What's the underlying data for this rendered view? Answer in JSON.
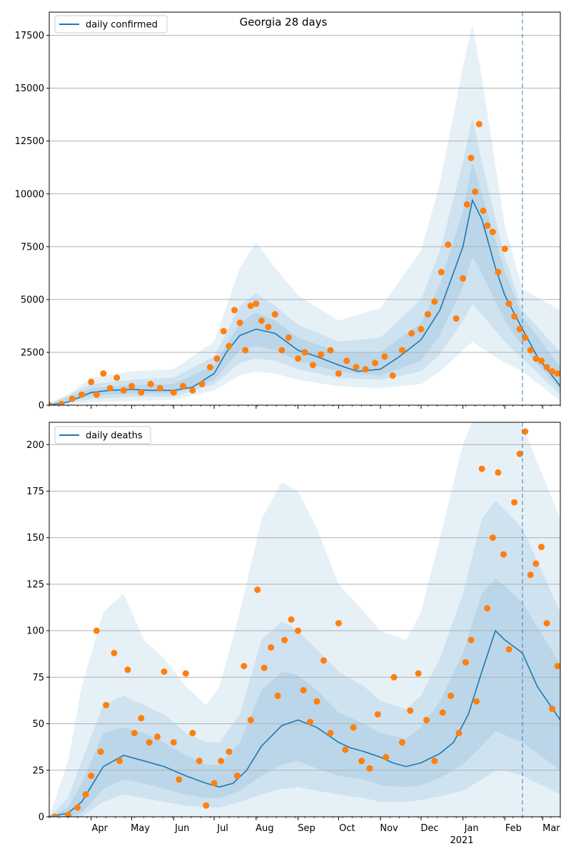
{
  "figure": {
    "title": "Georgia 28 days",
    "year_label": "2021",
    "colors": {
      "line": "#1f77b4",
      "points": "#ff7f0e",
      "band": "#1f77b4",
      "grid": "#b0b0b0",
      "vline": "#1f77b4"
    }
  },
  "chart_data": [
    {
      "type": "line",
      "name": "daily_confirmed",
      "legend": [
        "daily confirmed"
      ],
      "x_ticks": [
        "Apr",
        "May",
        "Jun",
        "Jul",
        "Aug",
        "Sep",
        "Oct",
        "Nov",
        "Dec",
        "Jan",
        "Feb",
        "Mar"
      ],
      "y_ticks": [
        0,
        2500,
        5000,
        7500,
        10000,
        12500,
        15000,
        17500
      ],
      "xlim": [
        "2020-03-01",
        "2021-03-14"
      ],
      "ylim": [
        0,
        18600
      ],
      "grid": "horizontal",
      "legend_placement": "top-left",
      "forecast_marker": "2021-02-14",
      "series": [
        {
          "name": "daily confirmed",
          "kind": "line",
          "x": [
            "2020-03-01",
            "2020-03-15",
            "2020-04-01",
            "2020-04-15",
            "2020-05-01",
            "2020-05-15",
            "2020-06-01",
            "2020-06-15",
            "2020-07-01",
            "2020-07-10",
            "2020-07-20",
            "2020-08-01",
            "2020-08-15",
            "2020-09-01",
            "2020-09-15",
            "2020-10-01",
            "2020-10-15",
            "2020-11-01",
            "2020-11-15",
            "2020-12-01",
            "2020-12-15",
            "2021-01-01",
            "2021-01-08",
            "2021-01-15",
            "2021-01-25",
            "2021-02-01",
            "2021-02-14",
            "2021-02-25",
            "2021-03-14"
          ],
          "y": [
            0,
            150,
            600,
            700,
            750,
            700,
            700,
            850,
            1500,
            2500,
            3300,
            3600,
            3400,
            2600,
            2300,
            1900,
            1600,
            1700,
            2300,
            3100,
            4500,
            7500,
            9700,
            8800,
            6500,
            5200,
            3600,
            2300,
            900
          ]
        }
      ],
      "band_levels": [
        {
          "name": "outer",
          "x": [
            "2020-03-01",
            "2020-03-15",
            "2020-04-01",
            "2020-05-01",
            "2020-06-01",
            "2020-07-01",
            "2020-07-20",
            "2020-08-01",
            "2020-08-15",
            "2020-09-01",
            "2020-10-01",
            "2020-11-01",
            "2020-12-01",
            "2020-12-15",
            "2021-01-01",
            "2021-01-08",
            "2021-01-15",
            "2021-02-01",
            "2021-02-14",
            "2021-03-14"
          ],
          "upper": [
            100,
            500,
            1300,
            1600,
            1700,
            3000,
            6500,
            7700,
            6500,
            5200,
            4000,
            4600,
            7300,
            10500,
            16000,
            18000,
            15500,
            8500,
            5500,
            4500
          ],
          "lower": [
            0,
            0,
            150,
            200,
            250,
            700,
            1400,
            1600,
            1500,
            1200,
            900,
            800,
            1000,
            1600,
            2600,
            3000,
            2700,
            2000,
            1600,
            200
          ]
        },
        {
          "name": "middle",
          "x": [
            "2020-03-01",
            "2020-04-01",
            "2020-05-01",
            "2020-06-01",
            "2020-07-01",
            "2020-07-20",
            "2020-08-01",
            "2020-08-15",
            "2020-09-01",
            "2020-10-01",
            "2020-11-01",
            "2020-12-01",
            "2020-12-15",
            "2021-01-01",
            "2021-01-08",
            "2021-01-15",
            "2021-02-01",
            "2021-02-14",
            "2021-03-14"
          ],
          "upper": [
            50,
            1000,
            1200,
            1300,
            2300,
            4700,
            5300,
            4700,
            3800,
            3000,
            3200,
            5000,
            7300,
            11500,
            13600,
            11500,
            7000,
            4500,
            2500
          ],
          "lower": [
            0,
            300,
            400,
            400,
            1000,
            2000,
            2200,
            2100,
            1700,
            1300,
            1200,
            1600,
            2400,
            4000,
            4800,
            4300,
            3000,
            2200,
            500
          ]
        },
        {
          "name": "inner",
          "x": [
            "2020-03-01",
            "2020-04-01",
            "2020-05-01",
            "2020-06-01",
            "2020-07-01",
            "2020-07-20",
            "2020-08-01",
            "2020-08-15",
            "2020-09-01",
            "2020-10-01",
            "2020-11-01",
            "2020-12-01",
            "2020-12-15",
            "2021-01-01",
            "2021-01-08",
            "2021-01-15",
            "2021-02-01",
            "2021-02-14",
            "2021-03-14"
          ],
          "upper": [
            20,
            800,
            950,
            1000,
            1900,
            3900,
            4400,
            4000,
            3200,
            2500,
            2500,
            3900,
            5700,
            9200,
            11500,
            10000,
            6300,
            4200,
            1800
          ],
          "lower": [
            0,
            450,
            550,
            550,
            1200,
            2600,
            2800,
            2600,
            2100,
            1600,
            1400,
            2100,
            3300,
            5600,
            7000,
            6200,
            4000,
            2800,
            700
          ]
        }
      ],
      "observations": {
        "x": [
          "2020-03-01",
          "2020-03-10",
          "2020-03-18",
          "2020-03-25",
          "2020-04-01",
          "2020-04-05",
          "2020-04-10",
          "2020-04-15",
          "2020-04-20",
          "2020-04-25",
          "2020-05-01",
          "2020-05-08",
          "2020-05-15",
          "2020-05-22",
          "2020-06-01",
          "2020-06-08",
          "2020-06-15",
          "2020-06-22",
          "2020-06-28",
          "2020-07-03",
          "2020-07-08",
          "2020-07-12",
          "2020-07-16",
          "2020-07-20",
          "2020-07-24",
          "2020-07-28",
          "2020-08-01",
          "2020-08-05",
          "2020-08-10",
          "2020-08-15",
          "2020-08-20",
          "2020-08-25",
          "2020-09-01",
          "2020-09-06",
          "2020-09-12",
          "2020-09-18",
          "2020-09-25",
          "2020-10-01",
          "2020-10-07",
          "2020-10-14",
          "2020-10-21",
          "2020-10-28",
          "2020-11-04",
          "2020-11-10",
          "2020-11-17",
          "2020-11-24",
          "2020-12-01",
          "2020-12-06",
          "2020-12-11",
          "2020-12-16",
          "2020-12-21",
          "2020-12-27",
          "2021-01-01",
          "2021-01-04",
          "2021-01-07",
          "2021-01-10",
          "2021-01-13",
          "2021-01-16",
          "2021-01-19",
          "2021-01-23",
          "2021-01-27",
          "2021-02-01",
          "2021-02-04",
          "2021-02-08",
          "2021-02-12",
          "2021-02-16",
          "2021-02-20",
          "2021-02-24",
          "2021-02-28",
          "2021-03-04",
          "2021-03-08",
          "2021-03-12"
        ],
        "y": [
          0,
          50,
          300,
          500,
          1100,
          500,
          1500,
          800,
          1300,
          700,
          900,
          600,
          1000,
          800,
          600,
          900,
          700,
          1000,
          1800,
          2200,
          3500,
          2800,
          4500,
          3900,
          2600,
          4700,
          4800,
          4000,
          3700,
          4300,
          2600,
          3200,
          2200,
          2500,
          1900,
          2400,
          2600,
          1500,
          2100,
          1800,
          1700,
          2000,
          2300,
          1400,
          2600,
          3400,
          3600,
          4300,
          4900,
          6300,
          7600,
          4100,
          6000,
          9500,
          11700,
          10100,
          13300,
          9200,
          8500,
          8200,
          6300,
          7400,
          4800,
          4200,
          3600,
          3200,
          2600,
          2200,
          2100,
          1800,
          1600,
          1500
        ]
      }
    },
    {
      "type": "line",
      "name": "daily_deaths",
      "legend": [
        "daily deaths"
      ],
      "x_ticks": [
        "Apr",
        "May",
        "Jun",
        "Jul",
        "Aug",
        "Sep",
        "Oct",
        "Nov",
        "Dec",
        "Jan",
        "Feb",
        "Mar"
      ],
      "y_ticks": [
        0,
        25,
        50,
        75,
        100,
        125,
        150,
        175,
        200
      ],
      "xlim": [
        "2020-03-01",
        "2021-03-14"
      ],
      "ylim": [
        0,
        212
      ],
      "grid": "horizontal",
      "legend_placement": "top-left",
      "forecast_marker": "2021-02-14",
      "series": [
        {
          "name": "daily deaths",
          "kind": "line",
          "x": [
            "2020-03-01",
            "2020-03-15",
            "2020-03-25",
            "2020-04-10",
            "2020-04-25",
            "2020-05-10",
            "2020-05-25",
            "2020-06-10",
            "2020-06-25",
            "2020-07-05",
            "2020-07-15",
            "2020-07-25",
            "2020-08-05",
            "2020-08-20",
            "2020-09-01",
            "2020-09-15",
            "2020-10-01",
            "2020-10-10",
            "2020-10-20",
            "2020-11-01",
            "2020-11-10",
            "2020-11-20",
            "2020-12-01",
            "2020-12-15",
            "2020-12-25",
            "2021-01-05",
            "2021-01-15",
            "2021-01-25",
            "2021-02-01",
            "2021-02-14",
            "2021-02-25",
            "2021-03-14"
          ],
          "y": [
            0,
            2,
            8,
            27,
            33,
            30,
            27,
            22,
            18,
            16,
            18,
            25,
            38,
            49,
            52,
            48,
            40,
            37,
            35,
            32,
            29,
            27,
            29,
            34,
            40,
            55,
            78,
            100,
            95,
            88,
            70,
            52
          ]
        }
      ],
      "band_levels": [
        {
          "name": "outer",
          "x": [
            "2020-03-01",
            "2020-03-15",
            "2020-03-25",
            "2020-04-10",
            "2020-04-25",
            "2020-05-10",
            "2020-05-25",
            "2020-06-10",
            "2020-06-25",
            "2020-07-05",
            "2020-07-20",
            "2020-08-05",
            "2020-08-20",
            "2020-09-01",
            "2020-09-15",
            "2020-10-01",
            "2020-10-20",
            "2020-11-01",
            "2020-11-20",
            "2020-12-01",
            "2020-12-15",
            "2021-01-01",
            "2021-01-15",
            "2021-01-25",
            "2021-02-01",
            "2021-02-14",
            "2021-03-14"
          ],
          "upper": [
            0,
            30,
            70,
            110,
            120,
            95,
            85,
            70,
            60,
            70,
            110,
            160,
            180,
            175,
            155,
            125,
            110,
            100,
            95,
            110,
            150,
            200,
            225,
            225,
            220,
            210,
            160
          ],
          "lower": [
            0,
            0,
            0,
            0,
            0,
            0,
            0,
            0,
            0,
            0,
            0,
            0,
            0,
            0,
            0,
            0,
            0,
            0,
            0,
            0,
            0,
            0,
            0,
            0,
            0,
            0,
            0
          ]
        },
        {
          "name": "middle",
          "x": [
            "2020-03-01",
            "2020-03-15",
            "2020-03-25",
            "2020-04-10",
            "2020-04-25",
            "2020-05-10",
            "2020-05-25",
            "2020-06-10",
            "2020-06-25",
            "2020-07-05",
            "2020-07-20",
            "2020-08-05",
            "2020-08-20",
            "2020-09-01",
            "2020-09-15",
            "2020-10-01",
            "2020-10-20",
            "2020-11-01",
            "2020-11-20",
            "2020-12-01",
            "2020-12-15",
            "2021-01-01",
            "2021-01-15",
            "2021-01-25",
            "2021-02-01",
            "2021-02-14",
            "2021-03-14"
          ],
          "upper": [
            0,
            10,
            30,
            60,
            65,
            60,
            55,
            45,
            40,
            40,
            55,
            95,
            105,
            100,
            90,
            78,
            70,
            62,
            58,
            65,
            85,
            120,
            160,
            170,
            165,
            155,
            110
          ],
          "lower": [
            0,
            0,
            0,
            8,
            12,
            10,
            8,
            6,
            5,
            5,
            8,
            12,
            15,
            16,
            14,
            12,
            10,
            8,
            8,
            9,
            11,
            14,
            20,
            25,
            25,
            22,
            12
          ]
        },
        {
          "name": "inner",
          "x": [
            "2020-03-01",
            "2020-03-15",
            "2020-03-25",
            "2020-04-10",
            "2020-04-25",
            "2020-05-10",
            "2020-05-25",
            "2020-06-10",
            "2020-06-25",
            "2020-07-05",
            "2020-07-20",
            "2020-08-05",
            "2020-08-20",
            "2020-09-01",
            "2020-09-15",
            "2020-10-01",
            "2020-10-20",
            "2020-11-01",
            "2020-11-20",
            "2020-12-01",
            "2020-12-15",
            "2021-01-01",
            "2021-01-15",
            "2021-01-25",
            "2021-02-01",
            "2021-02-14",
            "2021-03-14"
          ],
          "upper": [
            0,
            5,
            18,
            45,
            48,
            45,
            40,
            33,
            28,
            28,
            40,
            68,
            78,
            76,
            68,
            56,
            50,
            45,
            42,
            48,
            62,
            88,
            120,
            128,
            124,
            115,
            82
          ],
          "lower": [
            0,
            0,
            2,
            15,
            20,
            18,
            15,
            12,
            10,
            10,
            14,
            22,
            28,
            30,
            26,
            22,
            20,
            17,
            16,
            17,
            21,
            28,
            38,
            46,
            44,
            40,
            25
          ]
        }
      ],
      "observations": {
        "x": [
          "2020-03-05",
          "2020-03-15",
          "2020-03-22",
          "2020-03-28",
          "2020-04-01",
          "2020-04-05",
          "2020-04-08",
          "2020-04-12",
          "2020-04-18",
          "2020-04-22",
          "2020-04-28",
          "2020-05-03",
          "2020-05-08",
          "2020-05-14",
          "2020-05-20",
          "2020-05-25",
          "2020-06-01",
          "2020-06-05",
          "2020-06-10",
          "2020-06-15",
          "2020-06-20",
          "2020-06-25",
          "2020-07-01",
          "2020-07-06",
          "2020-07-12",
          "2020-07-18",
          "2020-07-23",
          "2020-07-28",
          "2020-08-02",
          "2020-08-07",
          "2020-08-12",
          "2020-08-17",
          "2020-08-22",
          "2020-08-27",
          "2020-09-01",
          "2020-09-05",
          "2020-09-10",
          "2020-09-15",
          "2020-09-20",
          "2020-09-25",
          "2020-10-01",
          "2020-10-06",
          "2020-10-12",
          "2020-10-18",
          "2020-10-24",
          "2020-10-30",
          "2020-11-05",
          "2020-11-11",
          "2020-11-17",
          "2020-11-23",
          "2020-11-29",
          "2020-12-05",
          "2020-12-11",
          "2020-12-17",
          "2020-12-23",
          "2020-12-29",
          "2021-01-03",
          "2021-01-07",
          "2021-01-11",
          "2021-01-15",
          "2021-01-19",
          "2021-01-23",
          "2021-01-27",
          "2021-01-31",
          "2021-02-04",
          "2021-02-08",
          "2021-02-12",
          "2021-02-16",
          "2021-02-20",
          "2021-02-24",
          "2021-02-28",
          "2021-03-04",
          "2021-03-08",
          "2021-03-12"
        ],
        "y": [
          0,
          1,
          5,
          12,
          22,
          100,
          35,
          60,
          88,
          30,
          79,
          45,
          53,
          40,
          43,
          78,
          40,
          20,
          77,
          45,
          30,
          6,
          18,
          30,
          35,
          22,
          81,
          52,
          122,
          80,
          91,
          65,
          95,
          106,
          100,
          68,
          51,
          62,
          84,
          45,
          104,
          36,
          48,
          30,
          26,
          55,
          32,
          75,
          40,
          57,
          77,
          52,
          30,
          56,
          65,
          45,
          83,
          95,
          62,
          187,
          112,
          150,
          185,
          141,
          90,
          169,
          195,
          207,
          130,
          136,
          145,
          104,
          58,
          81
        ]
      }
    }
  ]
}
